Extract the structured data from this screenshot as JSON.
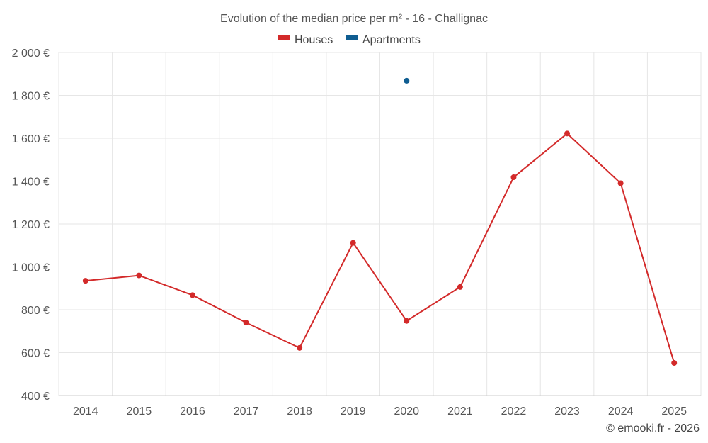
{
  "chart_data": {
    "type": "line",
    "title": "Evolution of the median price per m² - 16 - Challignac",
    "categories": [
      "2014",
      "2015",
      "2016",
      "2017",
      "2018",
      "2019",
      "2020",
      "2021",
      "2022",
      "2023",
      "2024",
      "2025"
    ],
    "series": [
      {
        "name": "Houses",
        "color": "#d32a2a",
        "values": [
          935,
          960,
          868,
          740,
          622,
          1112,
          748,
          906,
          1418,
          1622,
          1390,
          552
        ]
      },
      {
        "name": "Apartments",
        "color": "#0f5d91",
        "values": [
          null,
          null,
          null,
          null,
          null,
          null,
          1868,
          null,
          null,
          null,
          null,
          null
        ]
      }
    ],
    "ylim": [
      400,
      2000
    ],
    "yticks": [
      2000,
      1800,
      1600,
      1400,
      1200,
      1000,
      800,
      600,
      400
    ],
    "ytick_labels": [
      "2 000 €",
      "1 800 €",
      "1 600 €",
      "1 400 €",
      "1 200 €",
      "1 000 €",
      "800 €",
      "600 €",
      "400 €"
    ],
    "xlabel": "",
    "ylabel": "",
    "legend_position": "top-center",
    "grid": true
  },
  "credit": "© emooki.fr - 2026"
}
